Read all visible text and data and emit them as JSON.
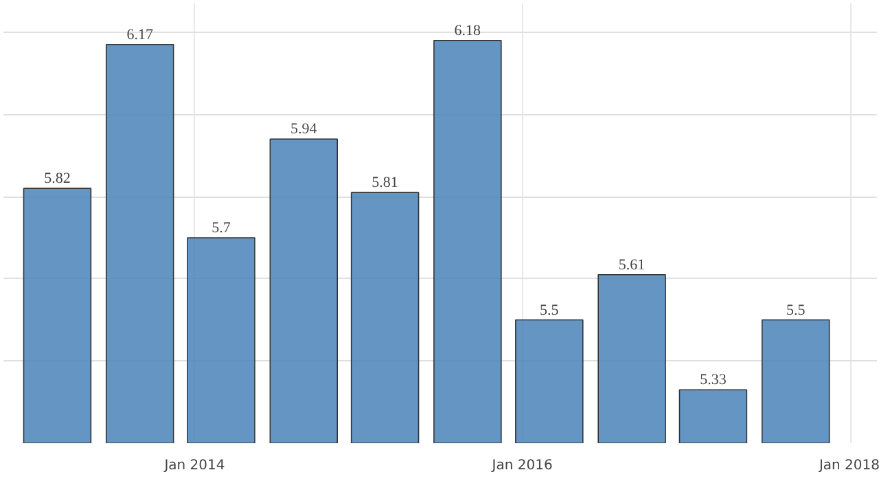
{
  "chart_data": {
    "type": "bar",
    "x": [
      "2013-03",
      "2013-09",
      "2014-03",
      "2014-09",
      "2015-03",
      "2015-09",
      "2016-03",
      "2016-09",
      "2017-03",
      "2017-09"
    ],
    "values": [
      5.82,
      6.17,
      5.7,
      5.94,
      5.81,
      6.18,
      5.5,
      5.61,
      5.33,
      5.5
    ],
    "color": "#4a84b8",
    "data_labels": true,
    "xlim": [
      "2012-11-01",
      "2018-03-01"
    ],
    "xticks": [
      {
        "value": "2014-01",
        "label": "Jan 2014"
      },
      {
        "value": "2016-01",
        "label": "Jan 2016"
      },
      {
        "value": "2018-01",
        "label": "Jan 2018"
      }
    ],
    "ylim": [
      5.2,
      6.27
    ],
    "tick_labels": "x",
    "grid": true
  }
}
